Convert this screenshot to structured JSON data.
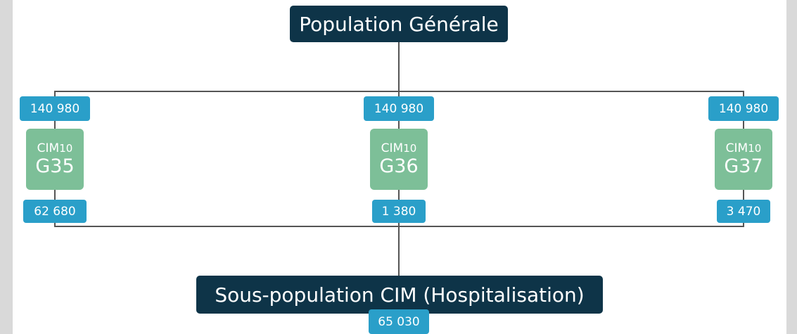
{
  "top": {
    "label": "Population Générale"
  },
  "columns": [
    {
      "count_in": "140 980",
      "classification": "CIM",
      "version": "10",
      "code": "G35",
      "count_out": "62 680"
    },
    {
      "count_in": "140 980",
      "classification": "CIM",
      "version": "10",
      "code": "G36",
      "count_out": "1 380"
    },
    {
      "count_in": "140 980",
      "classification": "CIM",
      "version": "10",
      "code": "G37",
      "count_out": "3 470"
    }
  ],
  "bottom": {
    "label": "Sous-population CIM (Hospitalisation)",
    "count": "65 030"
  }
}
